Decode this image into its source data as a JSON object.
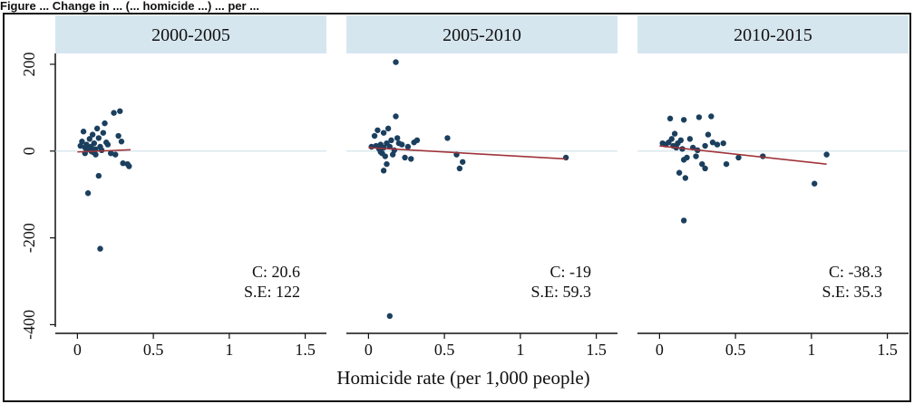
{
  "caption": {
    "text": "Figure ... Change in ... (... homicide ...) ... per ..."
  },
  "colors": {
    "header_fill": "#d6e6ef",
    "point": "#1b3f5e",
    "fit_line": "#a0343a",
    "zero_line": "#cfe0e8",
    "axis": "#111111"
  },
  "chart_data": {
    "type": "scatter",
    "xlabel": "Homicide rate (per 1,000 people)",
    "ylabel": "",
    "xlim": [
      -0.05,
      1.55
    ],
    "ylim": [
      -420,
      225
    ],
    "x_ticks": [
      0,
      0.5,
      1,
      1.5
    ],
    "x_tick_labels": [
      "0",
      "0.5",
      "1",
      "1.5"
    ],
    "y_ticks": [
      200,
      0,
      -200,
      -400
    ],
    "y_tick_labels": [
      "200",
      "0",
      "-200",
      "-400"
    ],
    "grid": false,
    "panels": [
      {
        "title": "2000-2005",
        "annotation": [
          "C: 20.6",
          "S.E: 122"
        ],
        "fit": {
          "x": [
            0.0,
            0.35
          ],
          "y": [
            -2,
            3
          ]
        },
        "points": [
          [
            0.02,
            12
          ],
          [
            0.03,
            22
          ],
          [
            0.04,
            45
          ],
          [
            0.05,
            8
          ],
          [
            0.06,
            15
          ],
          [
            0.07,
            5
          ],
          [
            0.08,
            28
          ],
          [
            0.09,
            10
          ],
          [
            0.1,
            38
          ],
          [
            0.1,
            -2
          ],
          [
            0.11,
            18
          ],
          [
            0.12,
            4
          ],
          [
            0.12,
            -8
          ],
          [
            0.13,
            52
          ],
          [
            0.14,
            30
          ],
          [
            0.15,
            10
          ],
          [
            0.16,
            2
          ],
          [
            0.17,
            42
          ],
          [
            0.18,
            64
          ],
          [
            0.19,
            20
          ],
          [
            0.2,
            15
          ],
          [
            0.22,
            -5
          ],
          [
            0.24,
            88
          ],
          [
            0.25,
            -8
          ],
          [
            0.27,
            35
          ],
          [
            0.28,
            92
          ],
          [
            0.29,
            22
          ],
          [
            0.3,
            -28
          ],
          [
            0.33,
            -30
          ],
          [
            0.34,
            -35
          ],
          [
            0.07,
            -97
          ],
          [
            0.14,
            -57
          ],
          [
            0.15,
            -225
          ],
          [
            0.05,
            -5
          ],
          [
            0.09,
            0
          ]
        ]
      },
      {
        "title": "2005-2010",
        "annotation": [
          "C: -19",
          "S.E: 59.3"
        ],
        "fit": {
          "x": [
            0.0,
            1.3
          ],
          "y": [
            8,
            -18
          ]
        },
        "points": [
          [
            0.02,
            10
          ],
          [
            0.04,
            35
          ],
          [
            0.05,
            12
          ],
          [
            0.06,
            48
          ],
          [
            0.07,
            5
          ],
          [
            0.08,
            15
          ],
          [
            0.09,
            -5
          ],
          [
            0.1,
            42
          ],
          [
            0.1,
            8
          ],
          [
            0.11,
            -12
          ],
          [
            0.12,
            18
          ],
          [
            0.12,
            -30
          ],
          [
            0.13,
            52
          ],
          [
            0.14,
            10
          ],
          [
            0.15,
            25
          ],
          [
            0.16,
            -8
          ],
          [
            0.17,
            2
          ],
          [
            0.18,
            80
          ],
          [
            0.19,
            30
          ],
          [
            0.2,
            18
          ],
          [
            0.22,
            15
          ],
          [
            0.24,
            -15
          ],
          [
            0.26,
            10
          ],
          [
            0.28,
            -18
          ],
          [
            0.3,
            20
          ],
          [
            0.32,
            25
          ],
          [
            0.52,
            30
          ],
          [
            0.58,
            -8
          ],
          [
            0.6,
            -40
          ],
          [
            0.62,
            -25
          ],
          [
            1.3,
            -15
          ],
          [
            0.1,
            -45
          ],
          [
            0.18,
            205
          ],
          [
            0.14,
            -380
          ],
          [
            0.08,
            -2
          ]
        ]
      },
      {
        "title": "2010-2015",
        "annotation": [
          "C: -38.3",
          "S.E: 35.3"
        ],
        "fit": {
          "x": [
            0.0,
            1.1
          ],
          "y": [
            12,
            -30
          ]
        },
        "points": [
          [
            0.02,
            18
          ],
          [
            0.04,
            15
          ],
          [
            0.06,
            20
          ],
          [
            0.07,
            75
          ],
          [
            0.08,
            28
          ],
          [
            0.09,
            12
          ],
          [
            0.1,
            40
          ],
          [
            0.12,
            18
          ],
          [
            0.13,
            -50
          ],
          [
            0.14,
            25
          ],
          [
            0.15,
            5
          ],
          [
            0.16,
            -20
          ],
          [
            0.16,
            72
          ],
          [
            0.17,
            -62
          ],
          [
            0.18,
            -15
          ],
          [
            0.2,
            28
          ],
          [
            0.22,
            8
          ],
          [
            0.24,
            -12
          ],
          [
            0.26,
            78
          ],
          [
            0.28,
            -30
          ],
          [
            0.3,
            -40
          ],
          [
            0.3,
            12
          ],
          [
            0.32,
            38
          ],
          [
            0.34,
            80
          ],
          [
            0.35,
            20
          ],
          [
            0.38,
            15
          ],
          [
            0.42,
            18
          ],
          [
            0.44,
            -30
          ],
          [
            0.52,
            -15
          ],
          [
            0.68,
            -12
          ],
          [
            1.02,
            -75
          ],
          [
            1.1,
            -8
          ],
          [
            0.16,
            -160
          ],
          [
            0.11,
            8
          ],
          [
            0.25,
            2
          ]
        ]
      }
    ]
  }
}
